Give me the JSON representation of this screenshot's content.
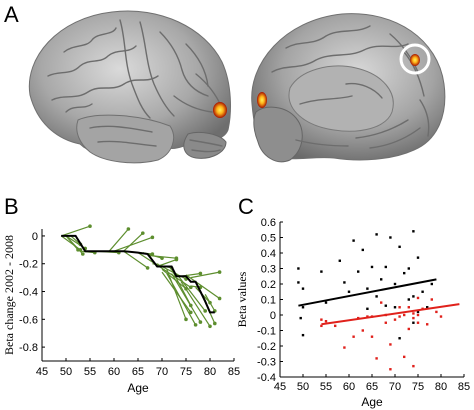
{
  "panels": {
    "a": "A",
    "b": "B",
    "c": "C"
  },
  "colors": {
    "brain_light": "#cfcfcf",
    "brain_mid": "#9a9a9a",
    "brain_dark": "#5e5e5e",
    "activation_outer": "#b01a00",
    "activation_inner": "#ffd21a",
    "marker_circle": "#ffffff",
    "individual_lines": "#5d8e2e",
    "mean_line": "#000000",
    "older_points": "#000000",
    "younger_points": "#e0211b"
  },
  "chart_data": [
    {
      "id": "B",
      "type": "line",
      "xlabel": "Age",
      "ylabel": "Beta change 2002 - 2008",
      "xlim": [
        45,
        85
      ],
      "ylim": [
        -0.9,
        0.05
      ],
      "xticks": [
        45,
        50,
        55,
        60,
        65,
        70,
        75,
        80,
        85
      ],
      "yticks": [
        0,
        -0.2,
        -0.4,
        -0.6,
        -0.8
      ],
      "ytick_labels": [
        "0",
        "-0.2",
        "-0.4",
        "-0.6",
        "-0.8"
      ],
      "grid": false,
      "individual_series": [
        [
          [
            49,
            0
          ],
          [
            55,
            0.07
          ]
        ],
        [
          [
            49,
            0
          ],
          [
            53,
            -0.1
          ]
        ],
        [
          [
            50,
            0
          ],
          [
            54,
            -0.09
          ]
        ],
        [
          [
            50,
            0
          ],
          [
            53.5,
            -0.13
          ]
        ],
        [
          [
            50,
            0
          ],
          [
            52.5,
            -0.1
          ]
        ],
        [
          [
            51,
            0
          ],
          [
            53,
            -0.06
          ]
        ],
        [
          [
            53,
            -0.11
          ],
          [
            56,
            -0.12
          ]
        ],
        [
          [
            56,
            -0.11
          ],
          [
            61,
            -0.12
          ]
        ],
        [
          [
            59,
            -0.11
          ],
          [
            63,
            0.05
          ]
        ],
        [
          [
            60,
            -0.11
          ],
          [
            68,
            -0.01
          ]
        ],
        [
          [
            62,
            -0.11
          ],
          [
            66,
            0.02
          ]
        ],
        [
          [
            62,
            -0.11
          ],
          [
            67,
            -0.23
          ]
        ],
        [
          [
            65,
            -0.12
          ],
          [
            68,
            -0.13
          ]
        ],
        [
          [
            65,
            -0.12
          ],
          [
            69,
            -0.21
          ]
        ],
        [
          [
            66,
            -0.12
          ],
          [
            70,
            -0.16
          ]
        ],
        [
          [
            67,
            -0.14
          ],
          [
            73,
            -0.16
          ]
        ],
        [
          [
            68,
            -0.2
          ],
          [
            72,
            -0.23
          ]
        ],
        [
          [
            69,
            -0.22
          ],
          [
            73,
            -0.17
          ]
        ],
        [
          [
            69,
            -0.21
          ],
          [
            76,
            -0.37
          ]
        ],
        [
          [
            70,
            -0.22
          ],
          [
            75,
            -0.31
          ]
        ],
        [
          [
            70,
            -0.24
          ],
          [
            75,
            -0.38
          ]
        ],
        [
          [
            70,
            -0.26
          ],
          [
            76,
            -0.55
          ]
        ],
        [
          [
            71,
            -0.24
          ],
          [
            75,
            -0.6
          ]
        ],
        [
          [
            71,
            -0.27
          ],
          [
            77,
            -0.64
          ]
        ],
        [
          [
            72,
            -0.24
          ],
          [
            76,
            -0.5
          ]
        ],
        [
          [
            72,
            -0.27
          ],
          [
            78,
            -0.62
          ]
        ],
        [
          [
            73,
            -0.27
          ],
          [
            79,
            -0.54
          ]
        ],
        [
          [
            74,
            -0.29
          ],
          [
            78,
            -0.27
          ]
        ],
        [
          [
            74,
            -0.33
          ],
          [
            80,
            -0.65
          ]
        ],
        [
          [
            75,
            -0.28
          ],
          [
            82,
            -0.45
          ]
        ],
        [
          [
            76,
            -0.3
          ],
          [
            82,
            -0.26
          ]
        ],
        [
          [
            76,
            -0.36
          ],
          [
            78,
            -0.37
          ]
        ],
        [
          [
            77,
            -0.37
          ],
          [
            80,
            -0.48
          ]
        ],
        [
          [
            78,
            -0.4
          ],
          [
            81,
            -0.63
          ]
        ],
        [
          [
            79,
            -0.42
          ],
          [
            81,
            -0.54
          ]
        ]
      ],
      "mean_series": [
        [
          49,
          0
        ],
        [
          52,
          0
        ],
        [
          54,
          -0.11
        ],
        [
          62,
          -0.11
        ],
        [
          65,
          -0.12
        ],
        [
          67,
          -0.13
        ],
        [
          69,
          -0.22
        ],
        [
          72,
          -0.22
        ],
        [
          73,
          -0.29
        ],
        [
          75,
          -0.29
        ],
        [
          76,
          -0.33
        ],
        [
          77,
          -0.33
        ],
        [
          78,
          -0.4
        ],
        [
          79,
          -0.47
        ],
        [
          80,
          -0.55
        ],
        [
          81,
          -0.55
        ]
      ]
    },
    {
      "id": "C",
      "type": "scatter",
      "xlabel": "Age",
      "ylabel": "Beta values",
      "xlim": [
        45,
        85
      ],
      "ylim": [
        -0.4,
        0.6
      ],
      "xticks": [
        45,
        50,
        55,
        60,
        65,
        70,
        75,
        80,
        85
      ],
      "yticks": [
        0.6,
        0.5,
        0.4,
        0.3,
        0.2,
        0.1,
        0,
        -0.1,
        -0.2,
        -0.3,
        -0.4
      ],
      "ytick_labels": [
        "0.6",
        "0.5",
        "0.4",
        "0.3",
        "0.2",
        "0.1",
        "0",
        "-0.1",
        "-0.2",
        "-0.3",
        "-0.4"
      ],
      "grid": false,
      "series": [
        {
          "color": "#000000",
          "points": [
            [
              49,
              0.3
            ],
            [
              49,
              0.21
            ],
            [
              50,
              0.17
            ],
            [
              50,
              0.05
            ],
            [
              49.5,
              -0.02
            ],
            [
              50,
              -0.13
            ],
            [
              54,
              0.28
            ],
            [
              55,
              0.08
            ],
            [
              58,
              0.35
            ],
            [
              59,
              0.21
            ],
            [
              60,
              0.15
            ],
            [
              61,
              0.48
            ],
            [
              62,
              0.28
            ],
            [
              63,
              0.42
            ],
            [
              64,
              0.04
            ],
            [
              64,
              0.17
            ],
            [
              65,
              0.31
            ],
            [
              66,
              0.52
            ],
            [
              66,
              0.12
            ],
            [
              67,
              0.23
            ],
            [
              68,
              0.31
            ],
            [
              68,
              0.06
            ],
            [
              69,
              0.5
            ],
            [
              70,
              0.2
            ],
            [
              70,
              0.05
            ],
            [
              71,
              0.44
            ],
            [
              72,
              0.27
            ],
            [
              73,
              0.3
            ],
            [
              73,
              0.1
            ],
            [
              74,
              0.54
            ],
            [
              74,
              0.12
            ],
            [
              75,
              0.37
            ],
            [
              75,
              0.02
            ],
            [
              76,
              0.15
            ],
            [
              77,
              0.05
            ],
            [
              78,
              0.2
            ],
            [
              74,
              -0.05
            ],
            [
              71,
              -0.15
            ]
          ],
          "fit": [
            [
              49,
              0.06
            ],
            [
              79,
              0.23
            ]
          ]
        },
        {
          "color": "#e0211b",
          "points": [
            [
              54,
              -0.03
            ],
            [
              54,
              -0.07
            ],
            [
              55,
              -0.04
            ],
            [
              57,
              -0.07
            ],
            [
              59,
              -0.21
            ],
            [
              61,
              -0.14
            ],
            [
              62,
              -0.02
            ],
            [
              63,
              -0.1
            ],
            [
              64,
              -0.01
            ],
            [
              65,
              -0.01
            ],
            [
              65,
              -0.14
            ],
            [
              66,
              -0.28
            ],
            [
              67,
              0.08
            ],
            [
              68,
              -0.05
            ],
            [
              68,
              0.0
            ],
            [
              69,
              -0.19
            ],
            [
              69,
              -0.35
            ],
            [
              70,
              -0.03
            ],
            [
              71,
              0.05
            ],
            [
              71,
              -0.01
            ],
            [
              72,
              0.0
            ],
            [
              72,
              -0.27
            ],
            [
              73,
              0.05
            ],
            [
              73,
              -0.09
            ],
            [
              74,
              -0.02
            ],
            [
              74,
              0.01
            ],
            [
              74,
              -0.33
            ],
            [
              75,
              0.11
            ],
            [
              75,
              0.0
            ],
            [
              75,
              -0.05
            ],
            [
              76,
              0.04
            ],
            [
              77,
              -0.06
            ],
            [
              78,
              0.1
            ],
            [
              79,
              0.02
            ],
            [
              80,
              -0.01
            ]
          ],
          "fit": [
            [
              54,
              -0.06
            ],
            [
              84,
              0.07
            ]
          ]
        }
      ]
    }
  ]
}
